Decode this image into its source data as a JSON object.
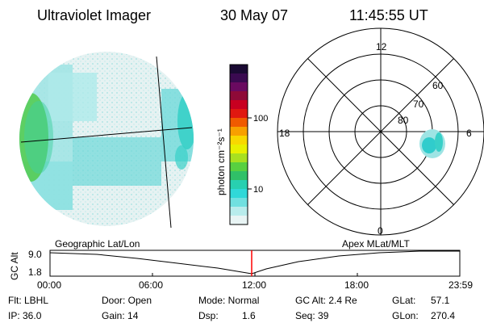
{
  "header": {
    "instrument": "Ultraviolet Imager",
    "date": "30 May 07",
    "time": "11:45:55 UT"
  },
  "colorbar": {
    "unit_label": "photon cm⁻²s⁻¹",
    "ticks": [
      "100",
      "10"
    ],
    "scale": "log",
    "colors": [
      "#1a0a33",
      "#3a0a50",
      "#6a0a60",
      "#8e0a38",
      "#c80020",
      "#e01810",
      "#f05a00",
      "#f8a000",
      "#f8d800",
      "#e8f000",
      "#a8e020",
      "#58d040",
      "#30c068",
      "#28d0b0",
      "#30d8d8",
      "#70e0e0",
      "#b8ecec",
      "#e8f4f4"
    ]
  },
  "polar": {
    "mlt_labels": {
      "top": "12",
      "left": "18",
      "right": "6",
      "bottom": "0"
    },
    "lat_labels": [
      "60",
      "70",
      "80"
    ]
  },
  "geo_label": "Geographic Lat/Lon",
  "apex_label": "Apex MLat/MLT",
  "alt_plot": {
    "axis_label": "GC Alt",
    "y_ticks": [
      "9.0",
      "1.8"
    ],
    "x_ticks": [
      "00:00",
      "06:00",
      "12:00",
      "18:00",
      "23:59"
    ],
    "marker_color": "#ff0000"
  },
  "info": {
    "flt": "Flt: LBHL",
    "ip": "IP: 36.0",
    "door": "Door: Open",
    "gain": "Gain: 14",
    "mode": "Mode: Normal",
    "dsp": "Dsp:",
    "dsp_value": "1.6",
    "gc_alt": "GC Alt: 2.4 Re",
    "seq": "Seq: 39",
    "glat": "GLat:",
    "glat_value": "57.1",
    "glon": "GLon:",
    "glon_value": "270.4"
  }
}
